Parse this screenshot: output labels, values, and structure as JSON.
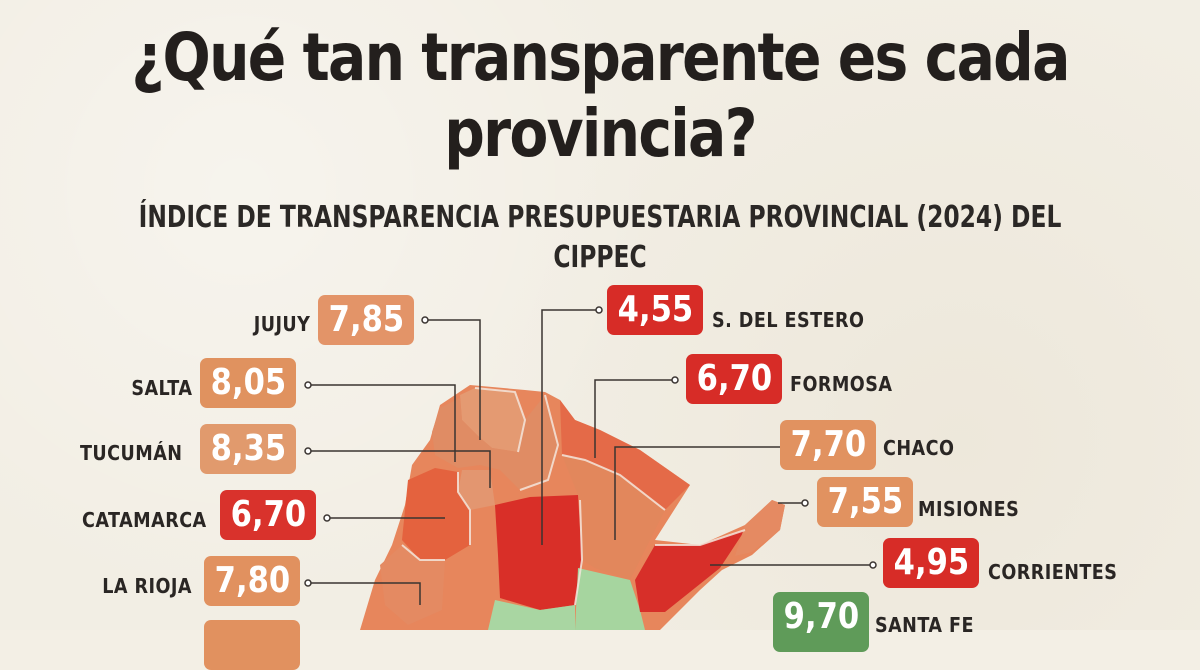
{
  "title": "¿Qué tan transparente es cada provincia?",
  "subtitle": "ÍNDICE DE TRANSPARENCIA PRESUPUESTARIA PROVINCIAL (2024) DEL CIPPEC",
  "colors": {
    "high": "#5c9a58",
    "mid": "#e08c60",
    "low": "#d9312b",
    "light_green": "#a7d5a1",
    "background": "#f2eee4"
  },
  "provinces": [
    {
      "name": "JUJUY",
      "score": "7,85",
      "level": "mid",
      "side": "left"
    },
    {
      "name": "SALTA",
      "score": "8,05",
      "level": "mid",
      "side": "left"
    },
    {
      "name": "TUCUMÁN",
      "score": "8,35",
      "level": "mid",
      "side": "left"
    },
    {
      "name": "CATAMARCA",
      "score": "6,70",
      "level": "low",
      "side": "left"
    },
    {
      "name": "LA RIOJA",
      "score": "7,80",
      "level": "mid",
      "side": "left"
    },
    {
      "name": "S. DEL ESTERO",
      "score": "4,55",
      "level": "low",
      "side": "right"
    },
    {
      "name": "FORMOSA",
      "score": "6,70",
      "level": "low",
      "side": "right"
    },
    {
      "name": "CHACO",
      "score": "7,70",
      "level": "mid",
      "side": "right"
    },
    {
      "name": "MISIONES",
      "score": "7,55",
      "level": "mid",
      "side": "right"
    },
    {
      "name": "CORRIENTES",
      "score": "4,95",
      "level": "low",
      "side": "right"
    },
    {
      "name": "SANTA FE",
      "score": "9,70",
      "level": "high",
      "side": "right"
    }
  ]
}
